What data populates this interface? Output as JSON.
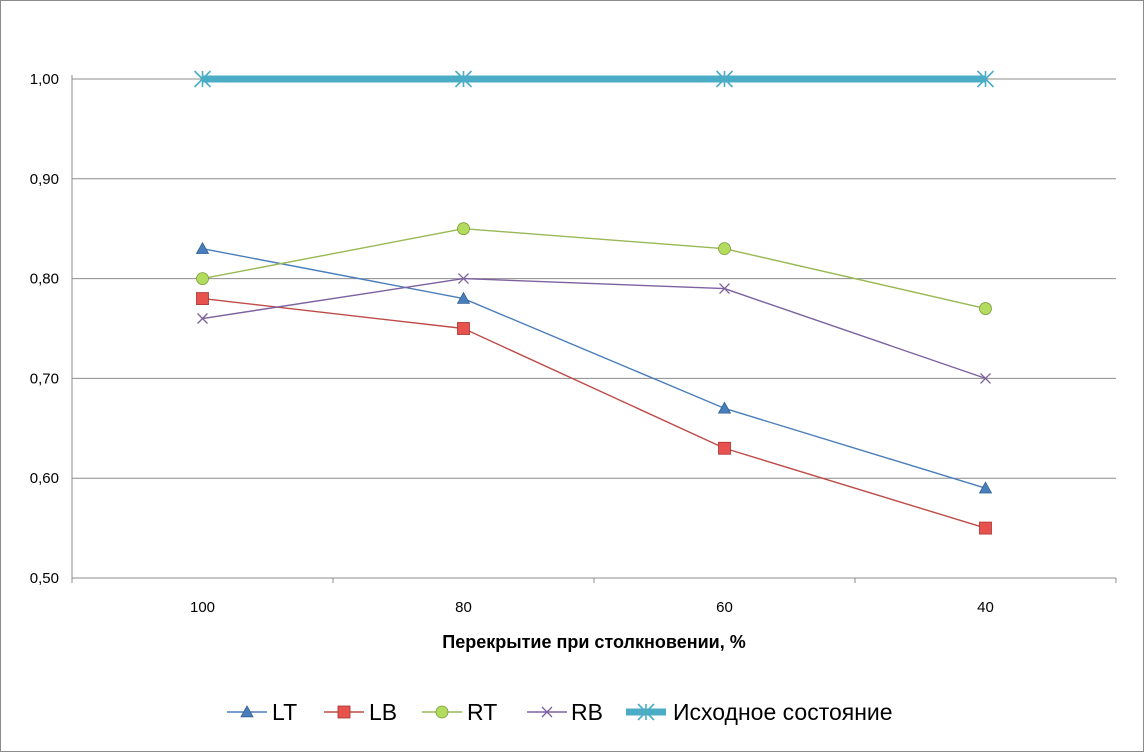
{
  "chart_data": {
    "type": "line",
    "title": "",
    "xlabel": "Перекрытие при столкновении, %",
    "ylabel": "",
    "categories": [
      "100",
      "80",
      "60",
      "40"
    ],
    "ylim": [
      0.5,
      1.0
    ],
    "yticks": [
      "0,50",
      "0,60",
      "0,70",
      "0,80",
      "0,90",
      "1,00"
    ],
    "grid": true,
    "legend_position": "bottom",
    "series": [
      {
        "name": "LT",
        "values": [
          0.83,
          0.78,
          0.67,
          0.59
        ],
        "color": "#4a7ebb",
        "marker": "triangle"
      },
      {
        "name": "LB",
        "values": [
          0.78,
          0.75,
          0.63,
          0.55
        ],
        "color": "#be4b48",
        "marker": "square"
      },
      {
        "name": "RT",
        "values": [
          0.8,
          0.85,
          0.83,
          0.77
        ],
        "color": "#98b954",
        "marker": "circle"
      },
      {
        "name": "RB",
        "values": [
          0.76,
          0.8,
          0.79,
          0.7
        ],
        "color": "#7d60a0",
        "marker": "x"
      },
      {
        "name": "Исходное состояние",
        "values": [
          1.0,
          1.0,
          1.0,
          1.0
        ],
        "color": "#4bacc6",
        "marker": "star"
      }
    ]
  }
}
